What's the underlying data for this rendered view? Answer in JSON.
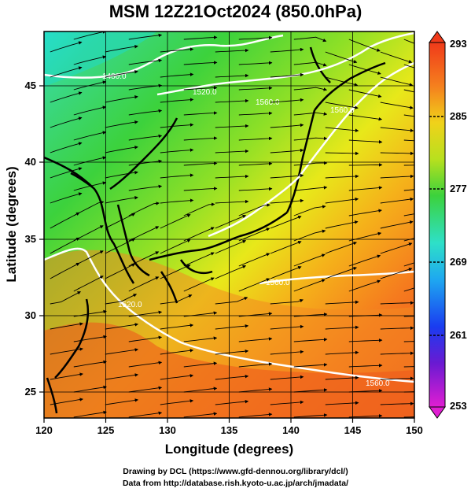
{
  "title": "MSM 12Z21Oct2024 (850.0hPa)",
  "map": {
    "lon_range": [
      120,
      150
    ],
    "lat_range": [
      22.4,
      47.6
    ],
    "lon_ticks": [
      120,
      125,
      130,
      135,
      140,
      145,
      150
    ],
    "lat_ticks": [
      25,
      30,
      35,
      40,
      45
    ],
    "xlabel": "Longitude (degrees)",
    "ylabel": "Latitude  (degrees)",
    "contour_labels": [
      "1480.0",
      "1520.0",
      "1560.0",
      "1560.0",
      "1520.0",
      "1560.0",
      "1560.0"
    ]
  },
  "colorbar": {
    "ticks": [
      "293",
      "285",
      "277",
      "269",
      "261",
      "253"
    ],
    "min": 253,
    "max": 293
  },
  "credits": {
    "line1": "Drawing by DCL (https://www.gfd-dennou.org/library/dcl/)",
    "line2": "Data from http://database.rish.kyoto-u.ac.jp/arch/jmadata/"
  }
}
